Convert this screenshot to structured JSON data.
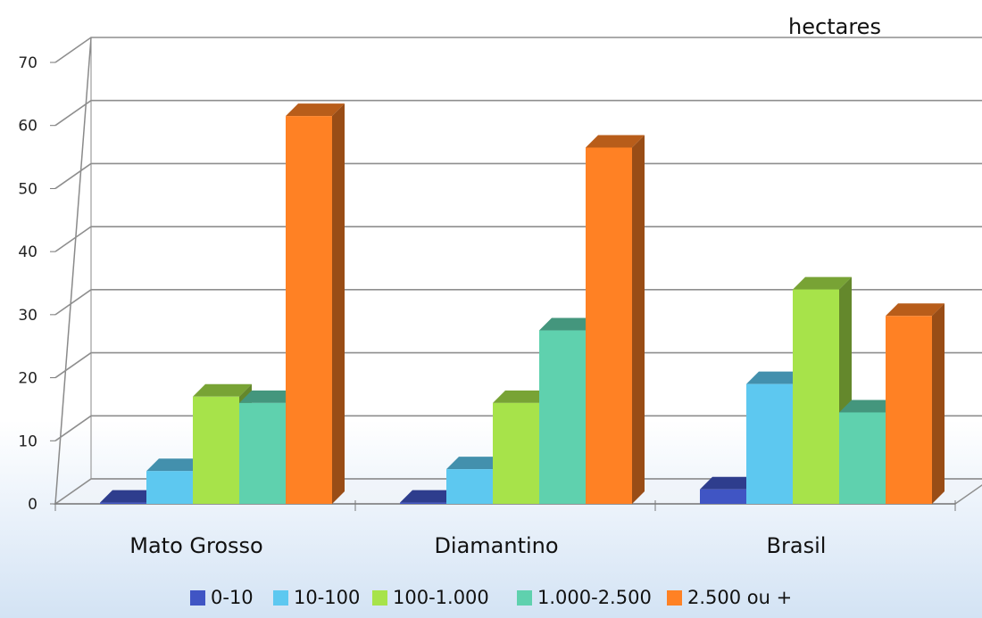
{
  "chart_data": {
    "type": "bar",
    "unit_label": "hectares",
    "categories": [
      "Mato Grosso",
      "Diamantino",
      "Brasil"
    ],
    "ylim": [
      0,
      70
    ],
    "yticks": [
      0,
      10,
      20,
      30,
      40,
      50,
      60,
      70
    ],
    "grid": true,
    "legend_position": "bottom",
    "series": [
      {
        "name": "0-10",
        "color": "#4055c4",
        "values": [
          0.2,
          0.2,
          2.3
        ]
      },
      {
        "name": "10-100",
        "color": "#5dc8f0",
        "values": [
          5.2,
          5.5,
          19.0
        ]
      },
      {
        "name": "100-1.000",
        "color": "#a7e34a",
        "values": [
          17.0,
          16.0,
          34.0
        ]
      },
      {
        "name": "1.000-2.500",
        "color": "#5fd1ae",
        "values": [
          16.0,
          27.5,
          14.5
        ]
      },
      {
        "name": "2.500 ou +",
        "color": "#ff8124",
        "values": [
          61.5,
          56.5,
          29.8
        ]
      }
    ]
  }
}
